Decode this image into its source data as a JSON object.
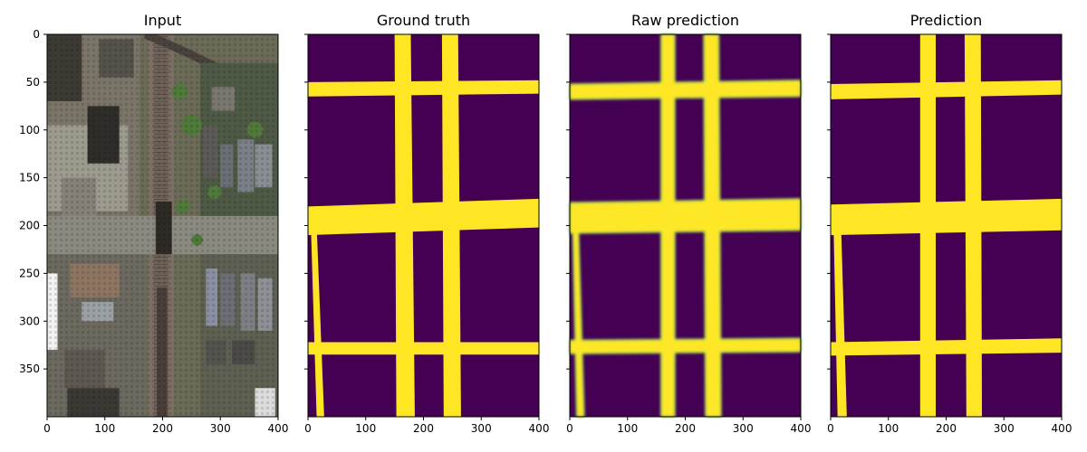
{
  "chart_data": {
    "type": "image_grid",
    "shared_y_axis": true,
    "axes": {
      "x_ticks": [
        0,
        100,
        200,
        300,
        400
      ],
      "y_ticks": [
        0,
        50,
        100,
        150,
        200,
        250,
        300,
        350
      ],
      "xlim": [
        0,
        400
      ],
      "ylim": [
        400,
        0
      ]
    },
    "colors": {
      "road": "#fde725",
      "background": "#440154",
      "edge": "#2a9a8a"
    },
    "panels": [
      {
        "title": "Input",
        "kind": "aerial-image",
        "show_y_tick_labels": true
      },
      {
        "title": "Ground truth",
        "kind": "binary-mask",
        "show_y_tick_labels": false,
        "roads_vertical": [
          {
            "x": [
              [
                150,
                178
              ],
              [
                153,
                185
              ]
            ],
            "y": [
              0,
              400
            ]
          },
          {
            "x": [
              [
                232,
                260
              ],
              [
                235,
                265
              ]
            ],
            "y": [
              0,
              400
            ]
          },
          {
            "x": [
              [
                5,
                15
              ],
              [
                15,
                28
              ]
            ],
            "y": [
              200,
              400
            ]
          }
        ],
        "roads_horizontal": [
          {
            "x": [
              0,
              400
            ],
            "y": [
              [
                50,
                65
              ],
              [
                48,
                62
              ]
            ]
          },
          {
            "x": [
              0,
              400
            ],
            "y": [
              [
                180,
                210
              ],
              [
                172,
                202
              ]
            ]
          },
          {
            "x": [
              0,
              400
            ],
            "y": [
              [
                322,
                335
              ],
              [
                322,
                335
              ]
            ]
          }
        ]
      },
      {
        "title": "Raw prediction",
        "kind": "soft-mask",
        "show_y_tick_labels": false,
        "roads_vertical": [
          {
            "x": [
              [
                158,
                182
              ],
              [
                158,
                182
              ]
            ],
            "y": [
              0,
              400
            ]
          },
          {
            "x": [
              [
                232,
                258
              ],
              [
                235,
                262
              ]
            ],
            "y": [
              0,
              400
            ]
          },
          {
            "x": [
              [
                5,
                15
              ],
              [
                12,
                25
              ]
            ],
            "y": [
              200,
              400
            ]
          }
        ],
        "roads_horizontal": [
          {
            "x": [
              0,
              400
            ],
            "y": [
              [
                52,
                68
              ],
              [
                48,
                65
              ]
            ]
          },
          {
            "x": [
              0,
              400
            ],
            "y": [
              [
                176,
                208
              ],
              [
                172,
                205
              ]
            ]
          },
          {
            "x": [
              0,
              400
            ],
            "y": [
              [
                320,
                334
              ],
              [
                318,
                332
              ]
            ]
          }
        ]
      },
      {
        "title": "Prediction",
        "kind": "binary-mask",
        "show_y_tick_labels": false,
        "roads_vertical": [
          {
            "x": [
              [
                155,
                182
              ],
              [
                155,
                182
              ]
            ],
            "y": [
              0,
              400
            ]
          },
          {
            "x": [
              [
                232,
                260
              ],
              [
                235,
                262
              ]
            ],
            "y": [
              0,
              400
            ]
          },
          {
            "x": [
              [
                5,
                18
              ],
              [
                12,
                28
              ]
            ],
            "y": [
              200,
              400
            ]
          }
        ],
        "roads_horizontal": [
          {
            "x": [
              0,
              400
            ],
            "y": [
              [
                52,
                68
              ],
              [
                48,
                63
              ]
            ]
          },
          {
            "x": [
              0,
              400
            ],
            "y": [
              [
                178,
                210
              ],
              [
                172,
                205
              ]
            ]
          },
          {
            "x": [
              0,
              400
            ],
            "y": [
              [
                322,
                336
              ],
              [
                318,
                333
              ]
            ]
          }
        ]
      }
    ]
  }
}
